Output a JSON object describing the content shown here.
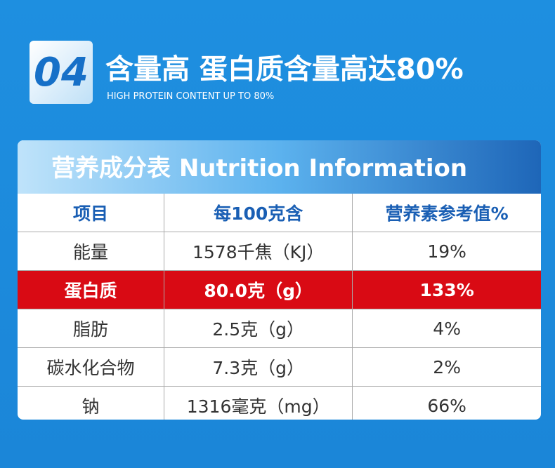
{
  "header": {
    "badge": "04",
    "title": "含量高 蛋白质含量高达80%",
    "subtitle": "HIGH PROTEIN CONTENT UP TO 80%"
  },
  "table": {
    "title": "营养成分表 Nutrition Information",
    "columns": [
      "项目",
      "每100克含",
      "营养素参考值%"
    ],
    "rows": [
      [
        "能量",
        "1578千焦（KJ）",
        "19%"
      ],
      [
        "蛋白质",
        "80.0克（g）",
        "133%"
      ],
      [
        "脂肪",
        "2.5克（g）",
        "4%"
      ],
      [
        "碳水化合物",
        "7.3克（g）",
        "2%"
      ],
      [
        "钠",
        "1316毫克（mg）",
        "66%"
      ]
    ]
  }
}
